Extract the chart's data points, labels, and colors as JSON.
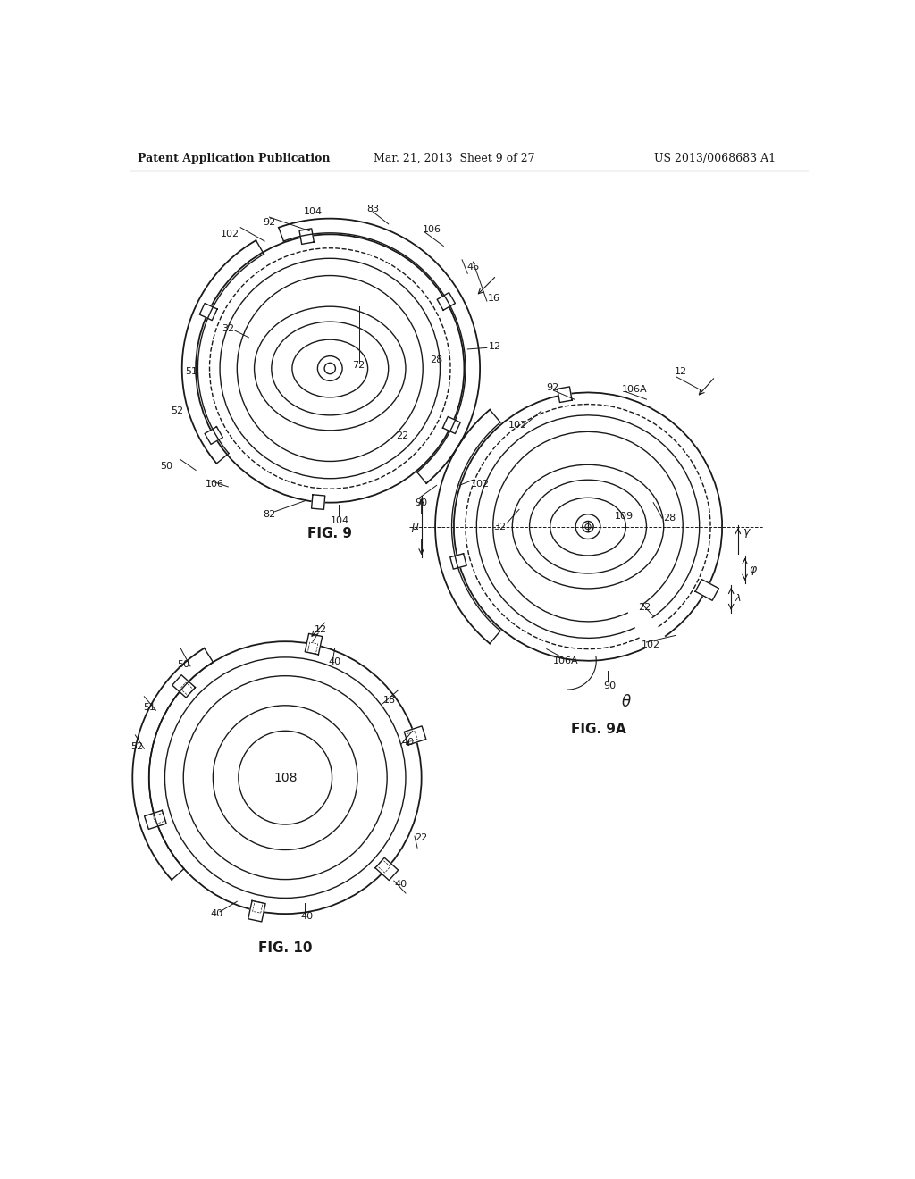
{
  "bg_color": "#ffffff",
  "line_color": "#1a1a1a",
  "header_left": "Patent Application Publication",
  "header_center": "Mar. 21, 2013  Sheet 9 of 27",
  "header_right": "US 2013/0068683 A1",
  "fig9_label": "FIG. 9",
  "fig9a_label": "FIG. 9A",
  "fig10_label": "FIG. 10"
}
